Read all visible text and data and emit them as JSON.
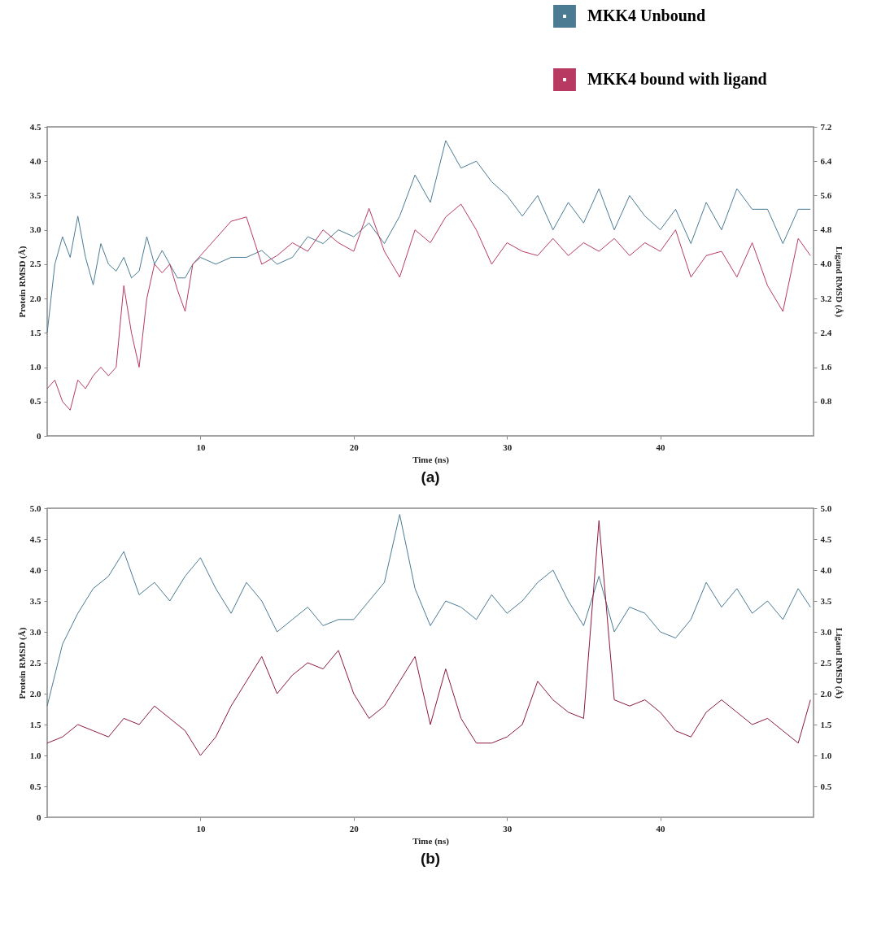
{
  "chart_data": [
    {
      "type": "line",
      "title": "(a)",
      "xlabel": "Time (ns)",
      "ylabel": "Protein RMSD (Å)",
      "y2label": "Ligand RMSD (Å)",
      "x": [
        0,
        0.5,
        1,
        1.5,
        2,
        2.5,
        3,
        3.5,
        4,
        4.5,
        5,
        5.5,
        6,
        6.5,
        7,
        7.5,
        8,
        8.5,
        9,
        9.5,
        10,
        11,
        12,
        13,
        14,
        15,
        16,
        17,
        18,
        19,
        20,
        21,
        22,
        23,
        24,
        25,
        26,
        27,
        28,
        29,
        30,
        31,
        32,
        33,
        34,
        35,
        36,
        37,
        38,
        39,
        40,
        41,
        42,
        43,
        44,
        45,
        46,
        47,
        48,
        49,
        49.8
      ],
      "series": [
        {
          "name": "MKK4 Unbound",
          "color": "#4a7b93",
          "values": [
            1.5,
            2.5,
            2.9,
            2.6,
            3.2,
            2.6,
            2.2,
            2.8,
            2.5,
            2.4,
            2.6,
            2.3,
            2.4,
            2.9,
            2.5,
            2.7,
            2.5,
            2.3,
            2.3,
            2.5,
            2.6,
            2.5,
            2.6,
            2.6,
            2.7,
            2.5,
            2.6,
            2.9,
            2.8,
            3.0,
            2.9,
            3.1,
            2.8,
            3.2,
            3.8,
            3.4,
            4.3,
            3.9,
            4.0,
            3.7,
            3.5,
            3.2,
            3.5,
            3.0,
            3.4,
            3.1,
            3.6,
            3.0,
            3.5,
            3.2,
            3.0,
            3.3,
            2.8,
            3.4,
            3.0,
            3.6,
            3.3,
            3.3,
            2.8,
            3.3,
            3.3
          ]
        },
        {
          "name": "MKK4 bound with ligand",
          "color": "#b83a62",
          "axis": "y2",
          "values": [
            1.1,
            1.3,
            0.8,
            0.6,
            1.3,
            1.1,
            1.4,
            1.6,
            1.4,
            1.6,
            3.5,
            2.4,
            1.6,
            3.2,
            4.0,
            3.8,
            4.0,
            3.4,
            2.9,
            4.0,
            4.2,
            4.6,
            5.0,
            5.1,
            4.0,
            4.2,
            4.5,
            4.3,
            4.8,
            4.5,
            4.3,
            5.3,
            4.3,
            3.7,
            4.8,
            4.5,
            5.1,
            5.4,
            4.8,
            4.0,
            4.5,
            4.3,
            4.2,
            4.6,
            4.2,
            4.5,
            4.3,
            4.6,
            4.2,
            4.5,
            4.3,
            4.8,
            3.7,
            4.2,
            4.3,
            3.7,
            4.5,
            3.5,
            2.9,
            4.6,
            4.2
          ]
        }
      ],
      "xlim": [
        0,
        50
      ],
      "xticks": [
        10,
        20,
        30,
        40
      ],
      "ylim": [
        0,
        4.5
      ],
      "yticks": [
        0,
        0.5,
        {
          "value": 1,
          "label": "1.0"
        },
        1.5,
        {
          "value": 2,
          "label": "2.0"
        },
        2.5,
        {
          "value": 3,
          "label": "3.0"
        },
        3.5,
        {
          "value": 4,
          "label": "4.0"
        },
        4.5
      ],
      "y2lim": [
        0,
        7.2
      ],
      "y2ticks": [
        0.8,
        1.6,
        2.4,
        3.2,
        {
          "value": 4,
          "label": "4.0"
        },
        4.8,
        5.6,
        6.4,
        7.2
      ],
      "legend": "top right",
      "grid": false
    },
    {
      "type": "line",
      "title": "(b)",
      "xlabel": "Time (ns)",
      "ylabel": "Protein RMSD (Å)",
      "y2label": "Ligand RMSD (Å)",
      "x": [
        0,
        1,
        2,
        3,
        4,
        5,
        6,
        7,
        8,
        9,
        10,
        11,
        12,
        13,
        14,
        15,
        16,
        17,
        18,
        19,
        20,
        21,
        22,
        23,
        24,
        25,
        26,
        27,
        28,
        29,
        30,
        31,
        32,
        33,
        34,
        35,
        36,
        37,
        38,
        39,
        40,
        41,
        42,
        43,
        44,
        45,
        46,
        47,
        48,
        49,
        49.8
      ],
      "series": [
        {
          "color": "#4a7b93",
          "values": [
            1.8,
            2.8,
            3.3,
            3.7,
            3.9,
            4.3,
            3.6,
            3.8,
            3.5,
            3.9,
            4.2,
            3.7,
            3.3,
            3.8,
            3.5,
            3.0,
            3.2,
            3.4,
            3.1,
            3.2,
            3.2,
            3.5,
            3.8,
            4.9,
            3.7,
            3.1,
            3.5,
            3.4,
            3.2,
            3.6,
            3.3,
            3.5,
            3.8,
            4.0,
            3.5,
            3.1,
            3.9,
            3.0,
            3.4,
            3.3,
            3.0,
            2.9,
            3.2,
            3.8,
            3.4,
            3.7,
            3.3,
            3.5,
            3.2,
            3.7,
            3.4
          ]
        },
        {
          "color": "#8c1a3a",
          "axis": "y2",
          "values": [
            1.2,
            1.3,
            1.5,
            1.4,
            1.3,
            1.6,
            1.5,
            1.8,
            1.6,
            1.4,
            1.0,
            1.3,
            1.8,
            2.2,
            2.6,
            2.0,
            2.3,
            2.5,
            2.4,
            2.7,
            2.0,
            1.6,
            1.8,
            2.2,
            2.6,
            1.5,
            2.4,
            1.6,
            1.2,
            1.2,
            1.3,
            1.5,
            2.2,
            1.9,
            1.7,
            1.6,
            4.8,
            1.9,
            1.8,
            1.9,
            1.7,
            1.4,
            1.3,
            1.7,
            1.9,
            1.7,
            1.5,
            1.6,
            1.4,
            1.2,
            1.9
          ]
        }
      ],
      "xlim": [
        0,
        50
      ],
      "xticks": [
        10,
        20,
        30,
        40
      ],
      "ylim": [
        0,
        5
      ],
      "yticks": [
        0,
        0.5,
        {
          "value": 1,
          "label": "1.0"
        },
        1.5,
        {
          "value": 2,
          "label": "2.0"
        },
        2.5,
        {
          "value": 3,
          "label": "3.0"
        },
        3.5,
        {
          "value": 4,
          "label": "4.0"
        },
        4.5,
        {
          "value": 5,
          "label": "5.0"
        }
      ],
      "y2lim": [
        0,
        5
      ],
      "y2ticks": [
        0.5,
        {
          "value": 1,
          "label": "1.0"
        },
        1.5,
        {
          "value": 2,
          "label": "2.0"
        },
        2.5,
        {
          "value": 3,
          "label": "3.0"
        },
        3.5,
        {
          "value": 4,
          "label": "4.0"
        },
        4.5,
        {
          "value": 5,
          "label": "5.0"
        }
      ],
      "legend": false,
      "grid": false
    }
  ]
}
